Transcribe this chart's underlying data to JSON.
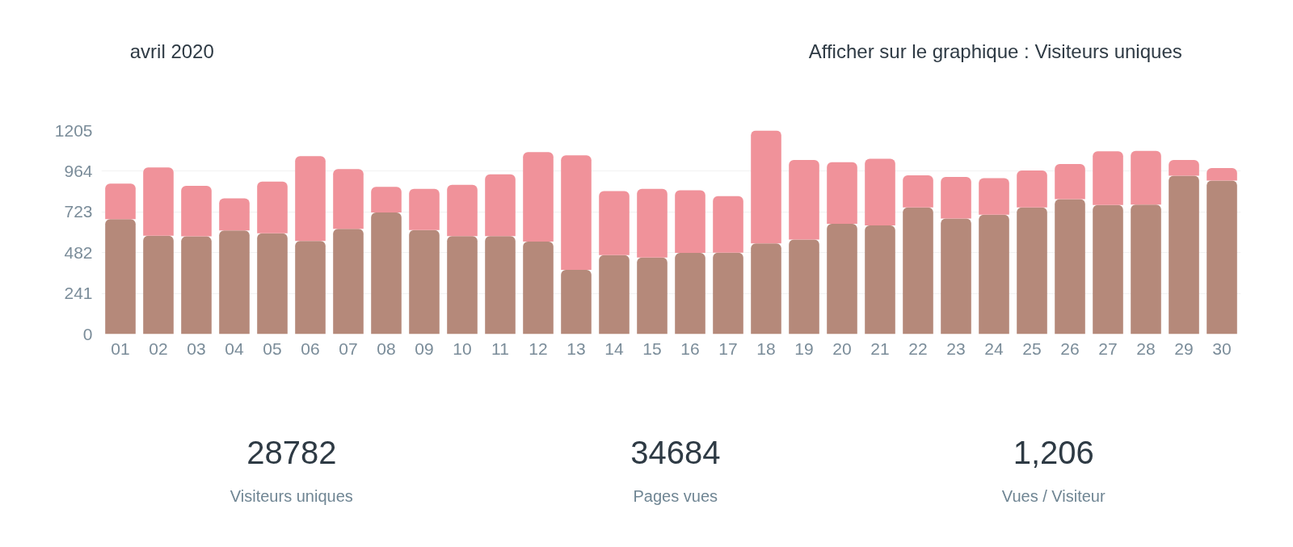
{
  "chart_data": {
    "type": "bar",
    "categories": [
      "01",
      "02",
      "03",
      "04",
      "05",
      "06",
      "07",
      "08",
      "09",
      "10",
      "11",
      "12",
      "13",
      "14",
      "15",
      "16",
      "17",
      "18",
      "19",
      "20",
      "21",
      "22",
      "23",
      "24",
      "25",
      "26",
      "27",
      "28",
      "29",
      "30"
    ],
    "series": [
      {
        "color": "#b5897a",
        "values": [
          680,
          582,
          578,
          613,
          597,
          551,
          623,
          720,
          616,
          580,
          580,
          547,
          380,
          468,
          453,
          480,
          482,
          537,
          559,
          653,
          643,
          749,
          684,
          706,
          749,
          798,
          764,
          766,
          937,
          908
        ]
      },
      {
        "color": "#f0929a",
        "values": [
          211,
          404,
          299,
          190,
          306,
          502,
          354,
          152,
          244,
          304,
          366,
          530,
          678,
          378,
          407,
          371,
          335,
          668,
          472,
          364,
          395,
          191,
          246,
          217,
          219,
          209,
          318,
          318,
          94,
          75
        ]
      }
    ],
    "stacked": true,
    "ylim": [
      0,
      1205
    ],
    "yticks": [
      0,
      241,
      482,
      723,
      964,
      1205
    ],
    "grid": "y",
    "annotations": [
      "avril 2020",
      "Afficher sur le graphique :  Visiteurs uniques",
      "28782",
      "Visiteurs uniques",
      "34684",
      "Pages vues",
      "1,206",
      "Vues / Visiteur"
    ]
  }
}
